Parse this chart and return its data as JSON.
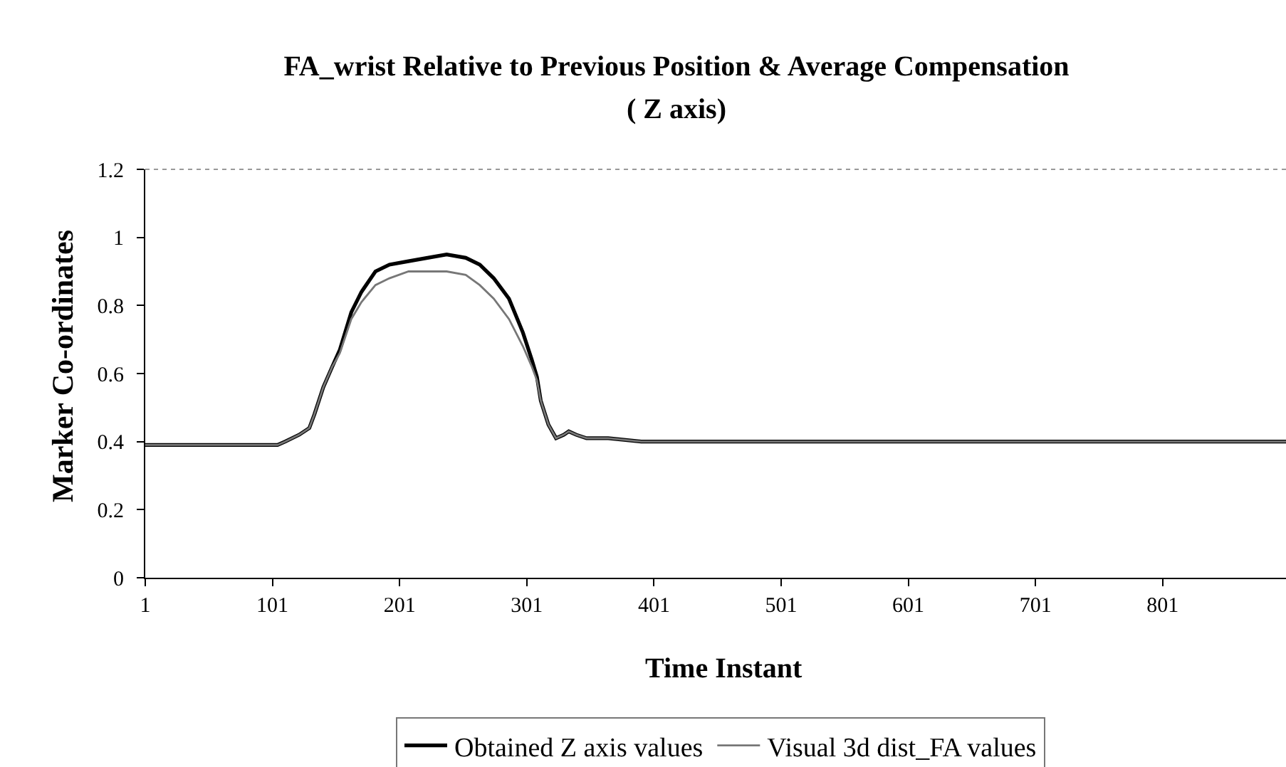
{
  "chart_data": {
    "type": "line",
    "title": "FA_wrist Relative to Previous Position & Average Compensation",
    "subtitle": "( Z axis)",
    "xlabel": "Time Instant",
    "ylabel": "Marker Co-ordinates",
    "xlim": [
      1,
      898
    ],
    "xticks": [
      1,
      101,
      201,
      301,
      401,
      501,
      601,
      701,
      801
    ],
    "ylim": [
      0,
      1.2
    ],
    "yticks": [
      0,
      0.2,
      0.4,
      0.6,
      0.8,
      1,
      1.2
    ],
    "grid": false,
    "legend": "bottom",
    "series": [
      {
        "name": "Obtained Z axis values",
        "color": "#000000",
        "x": [
          1,
          105,
          111,
          122,
          130,
          134,
          141,
          148,
          154,
          163,
          171,
          182,
          193,
          208,
          223,
          238,
          253,
          264,
          275,
          287,
          298,
          305,
          309,
          312,
          318,
          324,
          330,
          334,
          340,
          348,
          365,
          391,
          898
        ],
        "values": [
          0.39,
          0.39,
          0.4,
          0.42,
          0.44,
          0.48,
          0.56,
          0.62,
          0.67,
          0.78,
          0.84,
          0.9,
          0.92,
          0.93,
          0.94,
          0.95,
          0.94,
          0.92,
          0.88,
          0.82,
          0.72,
          0.64,
          0.59,
          0.52,
          0.45,
          0.41,
          0.42,
          0.43,
          0.42,
          0.41,
          0.41,
          0.4,
          0.4
        ]
      },
      {
        "name": "Visual 3d dist_FA values",
        "color": "#777777",
        "x": [
          1,
          105,
          111,
          122,
          130,
          134,
          141,
          148,
          154,
          163,
          171,
          182,
          193,
          208,
          223,
          238,
          253,
          264,
          275,
          287,
          298,
          305,
          309,
          312,
          318,
          324,
          330,
          334,
          340,
          348,
          365,
          391,
          898
        ],
        "values": [
          0.39,
          0.39,
          0.4,
          0.42,
          0.44,
          0.48,
          0.56,
          0.62,
          0.66,
          0.76,
          0.81,
          0.86,
          0.88,
          0.9,
          0.9,
          0.9,
          0.89,
          0.86,
          0.82,
          0.76,
          0.68,
          0.62,
          0.58,
          0.52,
          0.45,
          0.41,
          0.42,
          0.43,
          0.42,
          0.41,
          0.41,
          0.4,
          0.4
        ]
      }
    ]
  }
}
